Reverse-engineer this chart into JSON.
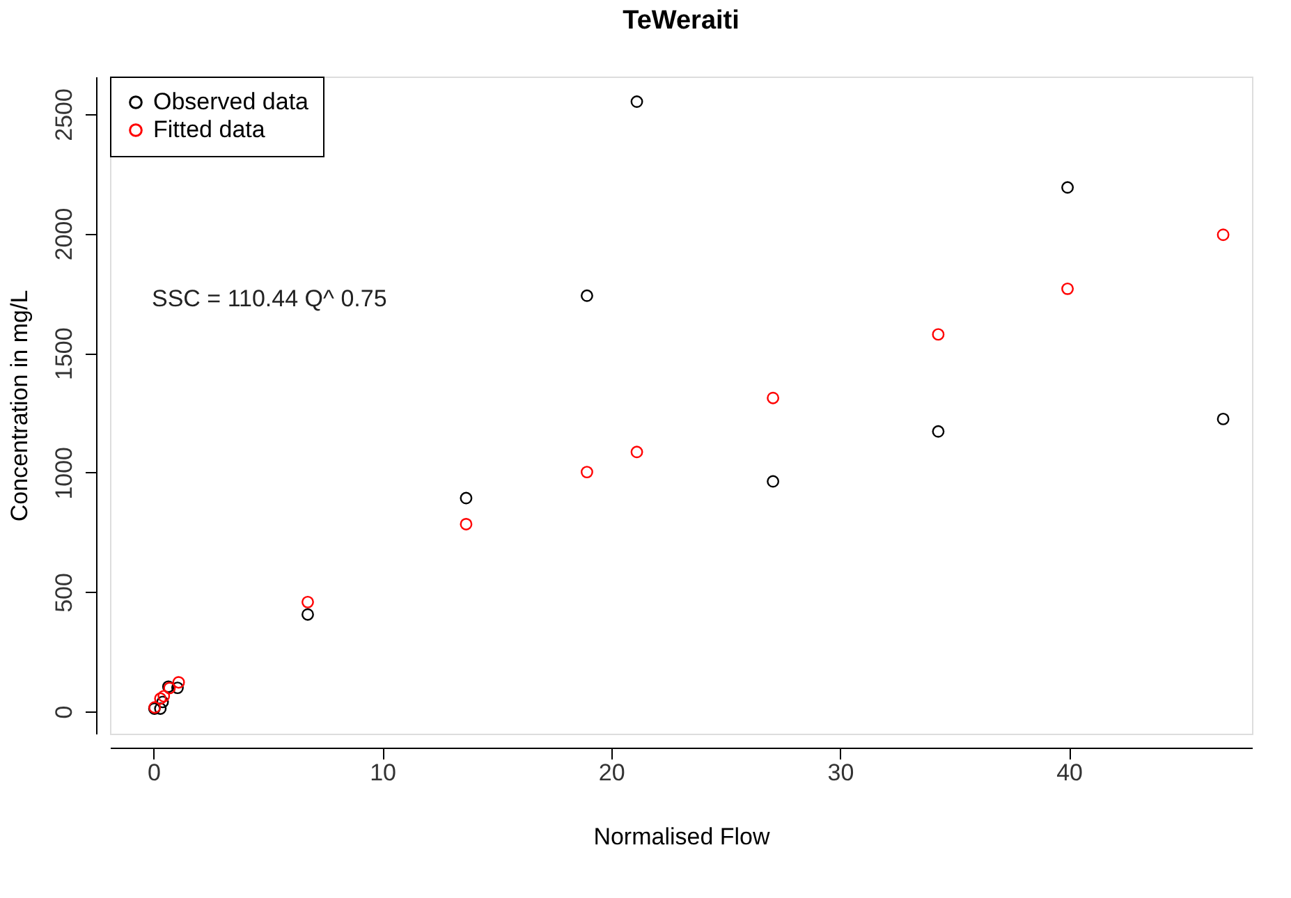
{
  "chart_data": {
    "type": "scatter",
    "title": "TeWeraiti",
    "xlabel": "Normalised Flow",
    "ylabel": "Concentration in mg/L",
    "annotations": [
      "SSC =  110.44 Q^ 0.75"
    ],
    "series": [
      {
        "name": "Observed data",
        "color": "#000000",
        "x": [
          0.04,
          0.3,
          0.4,
          0.65,
          1.05,
          6.74,
          13.66,
          18.94,
          21.12,
          27.07,
          34.29,
          39.94,
          46.74
        ],
        "values": [
          12,
          12,
          40,
          104,
          99,
          406,
          893,
          1740,
          2552,
          963,
          1172,
          2193,
          1224
        ]
      },
      {
        "name": "Fitted data",
        "color": "#ff0000",
        "x": [
          0.05,
          0.3,
          0.45,
          0.7,
          1.1,
          6.74,
          13.66,
          18.94,
          21.12,
          27.07,
          34.29,
          39.94,
          46.74
        ],
        "values": [
          17,
          54,
          64,
          98,
          122,
          458,
          784,
          1002,
          1086,
          1312,
          1578,
          1769,
          1995
        ]
      }
    ],
    "xlim": [
      -1.9,
      48
    ],
    "ylim": [
      -93,
      2657
    ],
    "xticks": [
      0,
      10,
      20,
      30,
      40
    ],
    "yticks": [
      0,
      500,
      1000,
      1500,
      2000,
      2500
    ],
    "grid": false,
    "legend": "top left",
    "marker": "circle"
  }
}
